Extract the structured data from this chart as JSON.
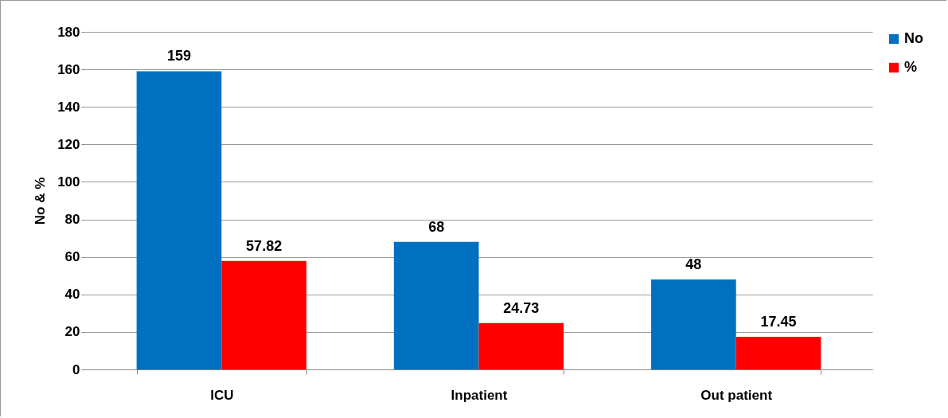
{
  "chart_data": {
    "type": "bar",
    "ylabel": "No & %",
    "categories": [
      "ICU",
      "Inpatient",
      "Out patient"
    ],
    "series": [
      {
        "name": "No",
        "color": "#0070c0",
        "values": [
          159,
          68,
          48
        ]
      },
      {
        "name": "%",
        "color": "#ff0000",
        "values": [
          57.82,
          24.73,
          17.45
        ]
      }
    ],
    "ylim": [
      0,
      180
    ],
    "yticks": [
      0,
      20,
      40,
      60,
      80,
      100,
      120,
      140,
      160,
      180
    ],
    "grid": "y",
    "legend": "right",
    "data_labels": true
  }
}
